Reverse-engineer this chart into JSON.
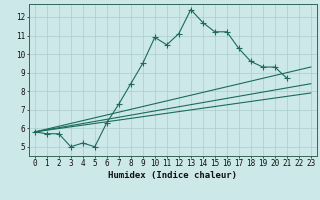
{
  "xlabel": "Humidex (Indice chaleur)",
  "background_color": "#cde8e8",
  "grid_color": "#aaccd0",
  "line_color": "#1a6b5a",
  "xlim": [
    -0.5,
    23.5
  ],
  "ylim": [
    4.5,
    12.7
  ],
  "xticks": [
    0,
    1,
    2,
    3,
    4,
    5,
    6,
    7,
    8,
    9,
    10,
    11,
    12,
    13,
    14,
    15,
    16,
    17,
    18,
    19,
    20,
    21,
    22,
    23
  ],
  "yticks": [
    5,
    6,
    7,
    8,
    9,
    10,
    11,
    12
  ],
  "main_x": [
    0,
    1,
    2,
    3,
    4,
    5,
    6,
    7,
    8,
    9,
    10,
    11,
    12,
    13,
    14,
    15,
    16,
    17,
    18,
    19,
    20,
    21,
    22,
    23
  ],
  "main_y": [
    5.8,
    5.7,
    5.7,
    5.0,
    5.2,
    5.0,
    6.3,
    7.3,
    8.4,
    9.5,
    10.9,
    10.5,
    11.1,
    12.4,
    11.7,
    11.2,
    11.2,
    10.3,
    9.6,
    9.3,
    9.3,
    8.7,
    null,
    null
  ],
  "line1_x": [
    0,
    23
  ],
  "line1_y": [
    5.8,
    9.3
  ],
  "line2_x": [
    0,
    23
  ],
  "line2_y": [
    5.8,
    8.4
  ],
  "line3_x": [
    0,
    23
  ],
  "line3_y": [
    5.8,
    7.9
  ]
}
